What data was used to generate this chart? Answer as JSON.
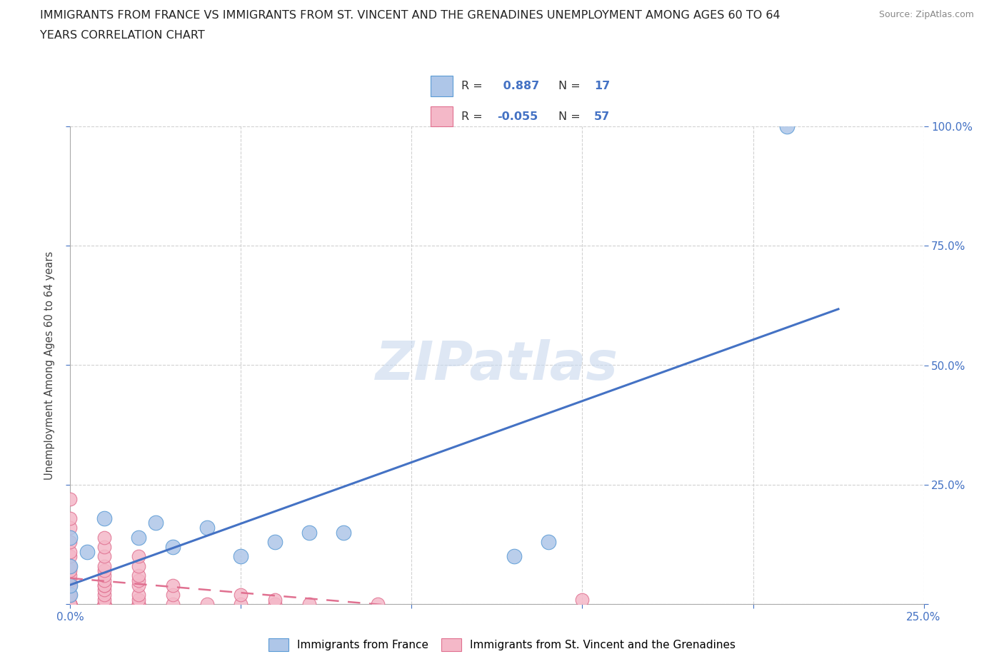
{
  "title_line1": "IMMIGRANTS FROM FRANCE VS IMMIGRANTS FROM ST. VINCENT AND THE GRENADINES UNEMPLOYMENT AMONG AGES 60 TO 64",
  "title_line2": "YEARS CORRELATION CHART",
  "source_text": "Source: ZipAtlas.com",
  "ylabel": "Unemployment Among Ages 60 to 64 years",
  "xlim": [
    0,
    0.25
  ],
  "ylim": [
    0,
    1.0
  ],
  "xticks": [
    0.0,
    0.05,
    0.1,
    0.15,
    0.2,
    0.25
  ],
  "yticks": [
    0.0,
    0.25,
    0.5,
    0.75,
    1.0
  ],
  "france_color": "#aec6e8",
  "france_edge": "#5b9bd5",
  "stvincent_color": "#f4b8c8",
  "stvincent_edge": "#e07090",
  "trend_france_color": "#4472c4",
  "trend_sv_color": "#e07090",
  "france_R": 0.887,
  "france_N": 17,
  "stvincent_R": -0.055,
  "stvincent_N": 57,
  "watermark": "ZIPatlas",
  "watermark_color": "#c8d8ee",
  "france_scatter_x": [
    0.0,
    0.0,
    0.0,
    0.0,
    0.005,
    0.01,
    0.02,
    0.025,
    0.03,
    0.04,
    0.05,
    0.06,
    0.07,
    0.08,
    0.13,
    0.14,
    0.21
  ],
  "france_scatter_y": [
    0.02,
    0.04,
    0.08,
    0.14,
    0.11,
    0.18,
    0.14,
    0.17,
    0.12,
    0.16,
    0.1,
    0.13,
    0.15,
    0.15,
    0.1,
    0.13,
    1.0
  ],
  "stvincent_scatter_x": [
    0.0,
    0.0,
    0.0,
    0.0,
    0.0,
    0.0,
    0.0,
    0.0,
    0.0,
    0.0,
    0.0,
    0.0,
    0.0,
    0.0,
    0.0,
    0.0,
    0.0,
    0.0,
    0.0,
    0.0,
    0.0,
    0.01,
    0.01,
    0.01,
    0.01,
    0.01,
    0.01,
    0.01,
    0.01,
    0.01,
    0.01,
    0.01,
    0.01,
    0.01,
    0.01,
    0.01,
    0.01,
    0.02,
    0.02,
    0.02,
    0.02,
    0.02,
    0.02,
    0.02,
    0.02,
    0.02,
    0.03,
    0.03,
    0.03,
    0.04,
    0.05,
    0.05,
    0.06,
    0.06,
    0.07,
    0.09,
    0.15
  ],
  "stvincent_scatter_y": [
    0.0,
    0.0,
    0.0,
    0.0,
    0.0,
    0.0,
    0.0,
    0.02,
    0.02,
    0.04,
    0.04,
    0.05,
    0.06,
    0.07,
    0.08,
    0.1,
    0.11,
    0.13,
    0.16,
    0.18,
    0.22,
    0.0,
    0.0,
    0.0,
    0.0,
    0.01,
    0.02,
    0.03,
    0.04,
    0.04,
    0.05,
    0.06,
    0.07,
    0.08,
    0.1,
    0.12,
    0.14,
    0.0,
    0.0,
    0.01,
    0.02,
    0.04,
    0.05,
    0.06,
    0.08,
    0.1,
    0.0,
    0.02,
    0.04,
    0.0,
    0.0,
    0.02,
    0.0,
    0.01,
    0.0,
    0.0,
    0.01
  ],
  "background_color": "#ffffff",
  "grid_color": "#cccccc"
}
